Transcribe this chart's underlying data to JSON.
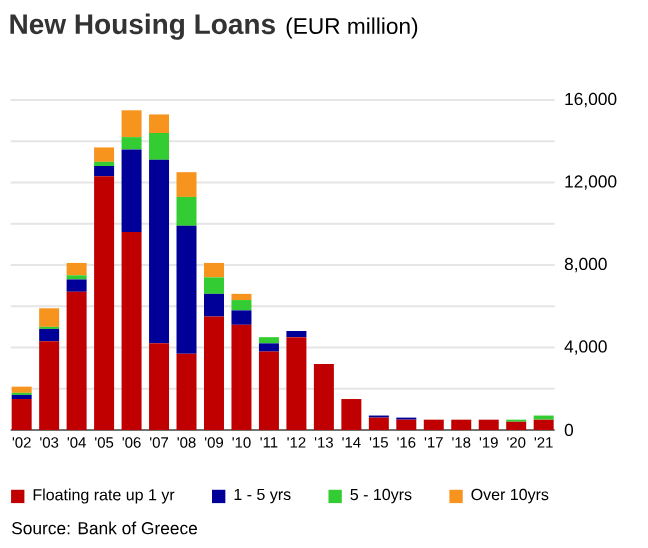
{
  "chart_data": {
    "type": "bar",
    "stacked": true,
    "title": "New Housing Loans",
    "subtitle": "(EUR  million)",
    "categories": [
      "'02",
      "'03",
      "'04",
      "'05",
      "'06",
      "'07",
      "'08",
      "'09",
      "'10",
      "'11",
      "'12",
      "'13",
      "'14",
      "'15",
      "'16",
      "'17",
      "'18",
      "'19",
      "'20",
      "'21"
    ],
    "series": [
      {
        "name": "Floating rate up 1 yr",
        "color": "#c00000",
        "values": [
          1500,
          4300,
          6700,
          12300,
          9600,
          4200,
          3700,
          5500,
          5100,
          3800,
          4500,
          3200,
          1500,
          600,
          500,
          500,
          500,
          500,
          400,
          500
        ]
      },
      {
        "name": "1 - 5 yrs",
        "color": "#000099",
        "values": [
          200,
          600,
          600,
          500,
          4000,
          8900,
          6200,
          1100,
          700,
          400,
          300,
          null,
          null,
          100,
          100,
          null,
          null,
          null,
          null,
          null
        ]
      },
      {
        "name": "5 - 10yrs",
        "color": "#33cc33",
        "values": [
          100,
          100,
          200,
          200,
          600,
          1300,
          1400,
          800,
          500,
          300,
          null,
          null,
          null,
          null,
          null,
          null,
          null,
          null,
          100,
          200
        ]
      },
      {
        "name": "Over 10yrs",
        "color": "#f7941d",
        "values": [
          300,
          900,
          600,
          700,
          1300,
          900,
          1200,
          700,
          300,
          null,
          null,
          null,
          null,
          null,
          null,
          null,
          null,
          null,
          null,
          null
        ]
      }
    ],
    "ylim": [
      0,
      16000
    ],
    "yticks": [
      {
        "value": 0,
        "label": "0"
      },
      {
        "value": 2000,
        "label": null
      },
      {
        "value": 4000,
        "label": "4,000"
      },
      {
        "value": 6000,
        "label": null
      },
      {
        "value": 8000,
        "label": "8,000"
      },
      {
        "value": 10000,
        "label": null
      },
      {
        "value": 12000,
        "label": "12,000"
      },
      {
        "value": 14000,
        "label": null
      },
      {
        "value": 16000,
        "label": "16,000"
      }
    ],
    "grid": "y",
    "legend": "bottom",
    "annotations": [
      "Source:  Bank of Greece"
    ]
  }
}
